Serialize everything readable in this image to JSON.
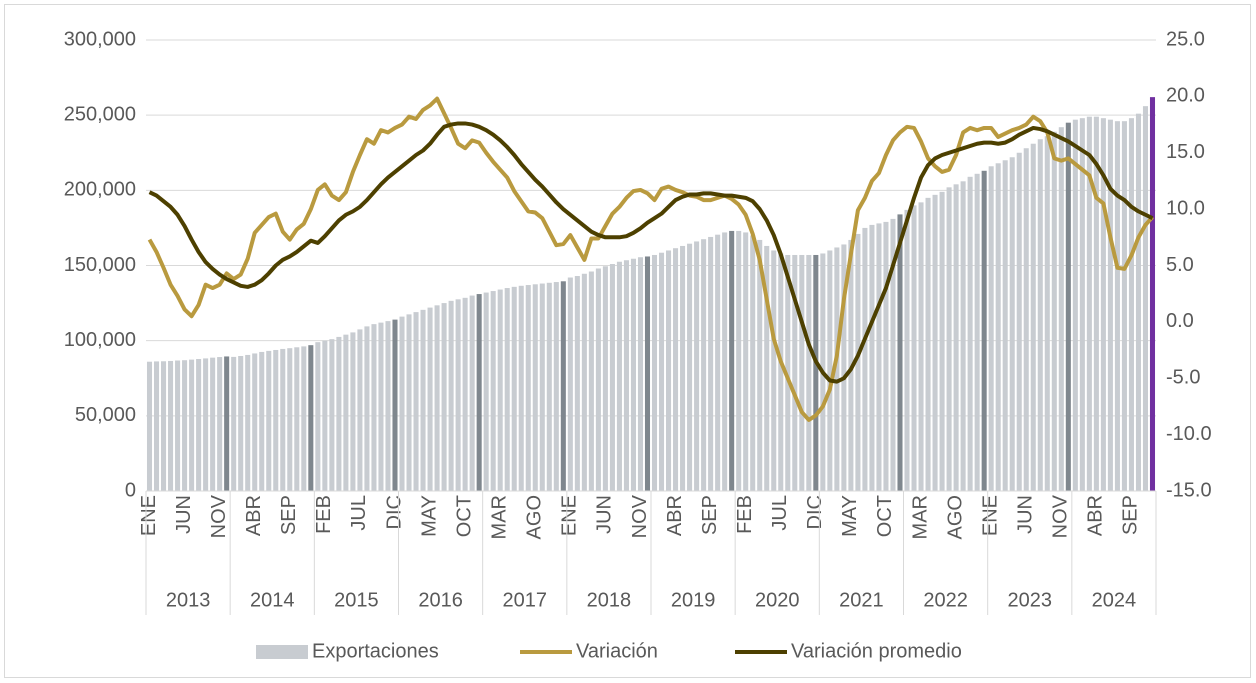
{
  "chart_data": {
    "type": "bar",
    "categories": [
      "ENE",
      null,
      null,
      null,
      null,
      "JUN",
      null,
      null,
      null,
      null,
      "NOV",
      null,
      null,
      null,
      null,
      "ABR",
      null,
      null,
      null,
      null,
      "SEP",
      null,
      null,
      null,
      null,
      "FEB",
      null,
      null,
      null,
      null,
      "JUL",
      null,
      null,
      null,
      null,
      "DIC",
      null,
      null,
      null,
      null,
      "MAY",
      null,
      null,
      null,
      null,
      "OCT",
      null,
      null,
      null,
      null,
      "MAR",
      null,
      null,
      null,
      null,
      "AGO",
      null,
      null,
      null,
      null,
      "ENE",
      null,
      null,
      null,
      null,
      "JUN",
      null,
      null,
      null,
      null,
      "NOV",
      null,
      null,
      null,
      null,
      "ABR",
      null,
      null,
      null,
      null,
      "SEP",
      null,
      null,
      null,
      null,
      "FEB",
      null,
      null,
      null,
      null,
      "JUL",
      null,
      null,
      null,
      null,
      "DIC",
      null,
      null,
      null,
      null,
      "MAY",
      null,
      null,
      null,
      null,
      "OCT",
      null,
      null,
      null,
      null,
      "MAR",
      null,
      null,
      null,
      null,
      "AGO",
      null,
      null,
      null,
      null,
      "ENE",
      null,
      null,
      null,
      null,
      "JUN",
      null,
      null,
      null,
      null,
      "NOV",
      null,
      null,
      null,
      null,
      "ABR",
      null,
      null,
      null,
      null,
      "SEP",
      null,
      null,
      null
    ],
    "year_groups": [
      "2013",
      "2014",
      "2015",
      "2016",
      "2017",
      "2018",
      "2019",
      "2020",
      "2021",
      "2022",
      "2023",
      "2024"
    ],
    "series": [
      {
        "name": "Exportaciones",
        "type": "bar",
        "color": "#c8ccd1",
        "colors": [
          "#c8ccd1",
          "#c8ccd1",
          "#c8ccd1",
          "#c8ccd1",
          "#c8ccd1",
          "#c8ccd1",
          "#c8ccd1",
          "#c8ccd1",
          "#c8ccd1",
          "#c8ccd1",
          "#c8ccd1",
          "#7f878e",
          "#c8ccd1",
          "#c8ccd1",
          "#c8ccd1",
          "#c8ccd1",
          "#c8ccd1",
          "#c8ccd1",
          "#c8ccd1",
          "#c8ccd1",
          "#c8ccd1",
          "#c8ccd1",
          "#c8ccd1",
          "#7f878e",
          "#c8ccd1",
          "#c8ccd1",
          "#c8ccd1",
          "#c8ccd1",
          "#c8ccd1",
          "#c8ccd1",
          "#c8ccd1",
          "#c8ccd1",
          "#c8ccd1",
          "#c8ccd1",
          "#c8ccd1",
          "#7f878e",
          "#c8ccd1",
          "#c8ccd1",
          "#c8ccd1",
          "#c8ccd1",
          "#c8ccd1",
          "#c8ccd1",
          "#c8ccd1",
          "#c8ccd1",
          "#c8ccd1",
          "#c8ccd1",
          "#c8ccd1",
          "#7f878e",
          "#c8ccd1",
          "#c8ccd1",
          "#c8ccd1",
          "#c8ccd1",
          "#c8ccd1",
          "#c8ccd1",
          "#c8ccd1",
          "#c8ccd1",
          "#c8ccd1",
          "#c8ccd1",
          "#c8ccd1",
          "#7f878e",
          "#c8ccd1",
          "#c8ccd1",
          "#c8ccd1",
          "#c8ccd1",
          "#c8ccd1",
          "#c8ccd1",
          "#c8ccd1",
          "#c8ccd1",
          "#c8ccd1",
          "#c8ccd1",
          "#c8ccd1",
          "#7f878e",
          "#c8ccd1",
          "#c8ccd1",
          "#c8ccd1",
          "#c8ccd1",
          "#c8ccd1",
          "#c8ccd1",
          "#c8ccd1",
          "#c8ccd1",
          "#c8ccd1",
          "#c8ccd1",
          "#c8ccd1",
          "#7f878e",
          "#c8ccd1",
          "#c8ccd1",
          "#c8ccd1",
          "#c8ccd1",
          "#c8ccd1",
          "#c8ccd1",
          "#c8ccd1",
          "#c8ccd1",
          "#c8ccd1",
          "#c8ccd1",
          "#c8ccd1",
          "#7f878e",
          "#c8ccd1",
          "#c8ccd1",
          "#c8ccd1",
          "#c8ccd1",
          "#c8ccd1",
          "#c8ccd1",
          "#c8ccd1",
          "#c8ccd1",
          "#c8ccd1",
          "#c8ccd1",
          "#c8ccd1",
          "#7f878e",
          "#c8ccd1",
          "#c8ccd1",
          "#c8ccd1",
          "#c8ccd1",
          "#c8ccd1",
          "#c8ccd1",
          "#c8ccd1",
          "#c8ccd1",
          "#c8ccd1",
          "#c8ccd1",
          "#c8ccd1",
          "#7f878e",
          "#c8ccd1",
          "#c8ccd1",
          "#c8ccd1",
          "#c8ccd1",
          "#c8ccd1",
          "#c8ccd1",
          "#c8ccd1",
          "#c8ccd1",
          "#c8ccd1",
          "#c8ccd1",
          "#c8ccd1",
          "#7f878e",
          "#c8ccd1",
          "#c8ccd1",
          "#c8ccd1",
          "#c8ccd1",
          "#c8ccd1",
          "#c8ccd1",
          "#c8ccd1",
          "#c8ccd1",
          "#c8ccd1",
          "#c8ccd1",
          "#c8ccd1",
          "#7030a0"
        ],
        "values": [
          86000,
          86200,
          86300,
          86500,
          86800,
          87000,
          87400,
          87800,
          88200,
          88700,
          89100,
          89500,
          89200,
          89800,
          90500,
          91500,
          92500,
          93200,
          93800,
          94500,
          95000,
          95600,
          96200,
          97000,
          99000,
          100000,
          101000,
          102500,
          104000,
          105500,
          107500,
          109500,
          111000,
          112000,
          113000,
          114000,
          116000,
          117500,
          119000,
          120500,
          122000,
          123500,
          125000,
          126500,
          127500,
          128500,
          130000,
          131000,
          132000,
          133000,
          134000,
          135000,
          135800,
          136500,
          137000,
          137500,
          138000,
          138500,
          139000,
          139500,
          142000,
          143000,
          144500,
          146000,
          148000,
          149500,
          151000,
          152500,
          153500,
          154500,
          155500,
          156000,
          157000,
          158500,
          160000,
          161500,
          163000,
          164500,
          166000,
          167500,
          169000,
          170500,
          172000,
          173000,
          173000,
          172000,
          170000,
          167000,
          163000,
          160000,
          158000,
          157000,
          157000,
          157000,
          157000,
          157000,
          158000,
          160000,
          162000,
          164000,
          167000,
          171000,
          175000,
          177000,
          178000,
          179000,
          181000,
          184000,
          187000,
          190000,
          192000,
          195000,
          197000,
          199000,
          202000,
          204000,
          206000,
          209000,
          211000,
          213000,
          216000,
          218000,
          220000,
          222000,
          225000,
          228000,
          231000,
          234000,
          236000,
          239000,
          242000,
          245000,
          247000,
          248000,
          249000,
          249000,
          248000,
          247000,
          246000,
          246000,
          248000,
          251000,
          256000,
          262000
        ]
      },
      {
        "name": "Variación",
        "type": "line",
        "axis": "y2",
        "color": "#b99a3f",
        "values": [
          7.3,
          6.2,
          4.8,
          3.3,
          2.3,
          1.1,
          0.5,
          1.5,
          3.3,
          3.0,
          3.3,
          4.3,
          3.8,
          4.2,
          5.6,
          7.9,
          8.6,
          9.3,
          9.6,
          8.0,
          7.3,
          8.2,
          8.7,
          10.0,
          11.7,
          12.2,
          11.2,
          10.8,
          11.5,
          13.3,
          14.8,
          16.2,
          15.8,
          17.0,
          16.8,
          17.2,
          17.5,
          18.2,
          18.0,
          18.8,
          19.2,
          19.8,
          18.5,
          17.2,
          15.8,
          15.4,
          16.1,
          15.9,
          15.0,
          14.2,
          13.5,
          12.8,
          11.6,
          10.7,
          9.8,
          9.7,
          9.2,
          8.0,
          6.8,
          6.9,
          7.7,
          6.6,
          5.5,
          7.4,
          7.4,
          8.5,
          9.6,
          10.2,
          11.0,
          11.6,
          11.7,
          11.4,
          10.8,
          11.8,
          12.0,
          11.7,
          11.5,
          11.2,
          11.1,
          10.8,
          10.8,
          11.0,
          11.2,
          10.9,
          10.4,
          9.5,
          7.8,
          5.5,
          2.0,
          -1.5,
          -3.5,
          -5.0,
          -6.5,
          -8.0,
          -8.7,
          -8.3,
          -7.5,
          -6.0,
          -3.0,
          2.0,
          6.0,
          9.9,
          11.0,
          12.5,
          13.2,
          14.8,
          16.1,
          16.8,
          17.3,
          17.2,
          16.0,
          14.5,
          13.8,
          13.3,
          13.5,
          14.8,
          16.8,
          17.2,
          17.0,
          17.2,
          17.2,
          16.4,
          16.7,
          17.0,
          17.2,
          17.5,
          18.2,
          17.8,
          16.8,
          14.5,
          14.3,
          14.5,
          14.0,
          13.5,
          13.0,
          11.0,
          10.5,
          7.5,
          4.8,
          4.7,
          5.9,
          7.5,
          8.6,
          9.3
        ]
      },
      {
        "name": "Variación promedio",
        "type": "line",
        "axis": "y2",
        "color": "#4d4000",
        "values": [
          11.5,
          11.2,
          10.7,
          10.2,
          9.5,
          8.5,
          7.3,
          6.2,
          5.3,
          4.7,
          4.2,
          3.8,
          3.5,
          3.2,
          3.1,
          3.3,
          3.7,
          4.3,
          5.0,
          5.5,
          5.8,
          6.2,
          6.7,
          7.2,
          7.0,
          7.6,
          8.3,
          9.0,
          9.5,
          9.8,
          10.2,
          10.8,
          11.5,
          12.2,
          12.8,
          13.3,
          13.8,
          14.3,
          14.8,
          15.2,
          15.8,
          16.6,
          17.3,
          17.5,
          17.6,
          17.6,
          17.5,
          17.3,
          17.0,
          16.6,
          16.1,
          15.5,
          14.8,
          14.0,
          13.3,
          12.6,
          12.0,
          11.3,
          10.6,
          10.0,
          9.5,
          9.0,
          8.5,
          8.0,
          7.7,
          7.5,
          7.5,
          7.5,
          7.6,
          7.9,
          8.3,
          8.8,
          9.2,
          9.6,
          10.2,
          10.8,
          11.1,
          11.3,
          11.3,
          11.4,
          11.4,
          11.3,
          11.2,
          11.2,
          11.1,
          11.0,
          10.7,
          10.0,
          9.0,
          7.7,
          6.0,
          4.0,
          2.0,
          0.0,
          -2.0,
          -3.5,
          -4.5,
          -5.2,
          -5.3,
          -5.0,
          -4.2,
          -3.0,
          -1.5,
          0.0,
          1.5,
          3.0,
          5.0,
          7.0,
          9.0,
          11.0,
          12.8,
          13.9,
          14.5,
          14.8,
          15.0,
          15.2,
          15.4,
          15.6,
          15.8,
          15.9,
          15.9,
          15.8,
          15.9,
          16.2,
          16.6,
          16.9,
          17.2,
          17.1,
          16.9,
          16.6,
          16.3,
          16.0,
          15.6,
          15.2,
          14.8,
          14.0,
          13.0,
          11.8,
          11.2,
          10.8,
          10.2,
          9.8,
          9.5,
          9.2
        ]
      }
    ],
    "ylim": [
      0,
      300000
    ],
    "yticks": [
      0,
      {
        "value": 50000,
        "label": "50,000"
      },
      {
        "value": 100000,
        "label": "100,000"
      },
      {
        "value": 150000,
        "label": "150,000"
      },
      {
        "value": 200000,
        "label": "200,000"
      },
      {
        "value": 250000,
        "label": "250,000"
      },
      {
        "value": 300000,
        "label": "300,000"
      }
    ],
    "y2lim": [
      -15,
      25
    ],
    "y2ticks": [
      {
        "value": -15,
        "label": "-15.0"
      },
      {
        "value": -10,
        "label": "-10.0"
      },
      {
        "value": -5,
        "label": "-5.0"
      },
      {
        "value": 0,
        "label": "0.0"
      },
      {
        "value": 5,
        "label": "5.0"
      },
      {
        "value": 10,
        "label": "10.0"
      },
      {
        "value": 15,
        "label": "15.0"
      },
      {
        "value": 20,
        "label": "20.0"
      },
      {
        "value": 25,
        "label": "25.0"
      }
    ],
    "grid": true,
    "legend": "bottom"
  }
}
